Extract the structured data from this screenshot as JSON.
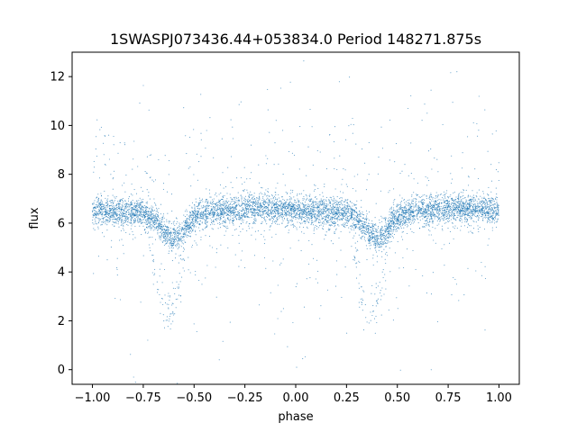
{
  "chart_data": {
    "type": "scatter",
    "title": "1SWASPJ073436.44+053834.0 Period 148271.875s",
    "xlabel": "phase",
    "ylabel": "flux",
    "xlim": [
      -1.1,
      1.1
    ],
    "ylim": [
      -0.6,
      13.0
    ],
    "grid": false,
    "legend": "none",
    "marker_color": "#1f77b4",
    "x_ticks": [
      -1.0,
      -0.75,
      -0.5,
      -0.25,
      0.0,
      0.25,
      0.5,
      0.75,
      1.0
    ],
    "x_tick_labels": [
      "−1.00",
      "−0.75",
      "−0.50",
      "−0.25",
      "0.00",
      "0.25",
      "0.50",
      "0.75",
      "1.00"
    ],
    "y_ticks": [
      0,
      2,
      4,
      6,
      8,
      10,
      12
    ],
    "y_tick_labels": [
      "0",
      "2",
      "4",
      "6",
      "8",
      "10",
      "12"
    ],
    "x_range": [
      -1.0,
      1.0
    ],
    "profile": {
      "baseline_flux": 6.45,
      "period_in_phase": 1.0,
      "shallow_eclipse": {
        "center_phase": -0.6,
        "min_flux": 5.4,
        "half_width": 0.15
      },
      "deep_eclipse": {
        "center_phase": -0.63,
        "min_flux": 2.4,
        "half_width": 0.1
      },
      "secondary_bump": {
        "center_phase": -0.18,
        "max_flux": 6.6
      }
    }
  }
}
